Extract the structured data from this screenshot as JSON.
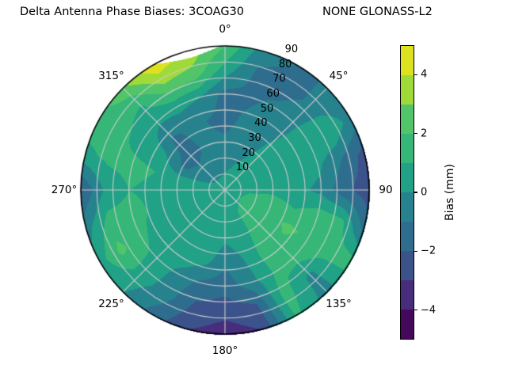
{
  "title": {
    "left": "Delta Antenna Phase Biases: 3COAG30",
    "right": "NONE GLONASS-L2"
  },
  "chart_data": {
    "type": "polar_contour",
    "title": "Delta Antenna Phase Biases: 3COAG30        NONE GLONASS-L2",
    "units": "mm",
    "angular_axis": {
      "zero_at": "top",
      "direction": "clockwise",
      "labels": [
        "0°",
        "45°",
        "90",
        "135°",
        "180°",
        "225°",
        "270°",
        "315°"
      ],
      "angles_deg": [
        0,
        45,
        90,
        135,
        180,
        225,
        270,
        315
      ]
    },
    "radial_axis": {
      "tick_labels": [
        "10",
        "20",
        "30",
        "40",
        "50",
        "60",
        "70",
        "80",
        "90"
      ],
      "tick_values": [
        10,
        20,
        30,
        40,
        50,
        60,
        70,
        80,
        90
      ],
      "max": 90,
      "label_angle_deg": 22.5,
      "grid_rings": [
        10,
        20,
        30,
        40,
        50,
        60,
        70,
        80
      ]
    },
    "colorbar": {
      "label": "Bias (mm)",
      "tick_labels": [
        "4",
        "2",
        "0",
        "−2",
        "−4"
      ],
      "tick_values": [
        4,
        2,
        0,
        -2,
        -4
      ],
      "range": [
        -5,
        5
      ],
      "level_step_mm": 1,
      "band_colors": [
        "#46085c",
        "#472d7b",
        "#3b528b",
        "#2f6d8e",
        "#26838e",
        "#21a186",
        "#36b778",
        "#52c569",
        "#a0da39",
        "#dde220"
      ]
    },
    "grid": {
      "azimuth_deg": [
        0,
        15,
        30,
        45,
        60,
        75,
        90,
        105,
        120,
        135,
        150,
        165,
        180,
        195,
        210,
        225,
        240,
        255,
        270,
        285,
        300,
        315,
        330,
        345
      ],
      "zenith_deg": [
        0,
        15,
        30,
        45,
        60,
        75,
        90
      ],
      "values_mm": [
        [
          0.6,
          0.6,
          0.6,
          0.6,
          0.6,
          0.6,
          0.6,
          0.6,
          0.6,
          0.6,
          0.6,
          0.6,
          0.6,
          0.6,
          0.6,
          0.6,
          0.6,
          0.6,
          0.6,
          0.6,
          0.6,
          0.6,
          0.6,
          0.6
        ],
        [
          -0.2,
          0.0,
          0.2,
          0.3,
          0.5,
          0.7,
          0.9,
          1.1,
          1.2,
          1.1,
          1.0,
          0.9,
          0.8,
          1.0,
          0.9,
          0.6,
          0.4,
          0.3,
          0.3,
          0.2,
          -0.4,
          -0.6,
          -0.5,
          -0.4
        ],
        [
          -0.8,
          -0.5,
          -0.2,
          0.2,
          0.4,
          0.6,
          0.8,
          1.4,
          1.6,
          1.3,
          1.0,
          0.5,
          0.2,
          0.8,
          1.0,
          0.6,
          0.4,
          0.4,
          0.5,
          0.3,
          -1.2,
          -1.4,
          -1.0,
          -0.8
        ],
        [
          -1.4,
          -0.8,
          -0.4,
          0.0,
          0.5,
          0.5,
          0.3,
          1.0,
          2.2,
          1.8,
          1.2,
          0.0,
          -0.8,
          0.3,
          0.8,
          0.5,
          0.5,
          0.8,
          0.8,
          1.0,
          0.3,
          -1.2,
          -0.8,
          -1.0
        ],
        [
          -1.4,
          -1.2,
          -0.8,
          -0.3,
          1.0,
          0.2,
          -0.3,
          1.5,
          1.8,
          1.5,
          1.0,
          -0.5,
          -1.6,
          -1.2,
          -0.3,
          0.8,
          1.2,
          1.4,
          1.0,
          1.3,
          0.6,
          0.2,
          0.3,
          0.0
        ],
        [
          0.5,
          -1.2,
          -1.5,
          -0.8,
          1.0,
          -1.0,
          -1.8,
          1.3,
          1.6,
          -0.3,
          1.5,
          -2.2,
          -2.6,
          -2.2,
          -0.5,
          0.5,
          2.3,
          1.4,
          0.2,
          1.2,
          1.3,
          1.0,
          2.8,
          2.6
        ],
        [
          2.0,
          -0.5,
          -1.0,
          -1.0,
          -0.5,
          -2.4,
          -2.6,
          -1.5,
          1.5,
          -0.5,
          1.2,
          -3.0,
          -3.6,
          -3.0,
          -1.5,
          0.0,
          0.5,
          -0.5,
          -2.2,
          0.8,
          1.5,
          2.8,
          4.8,
          3.8
        ]
      ]
    },
    "no_data_sector": {
      "azimuth_start_deg": 331,
      "azimuth_end_deg": 358,
      "max_depth_deg": 4.3
    },
    "style": {
      "grid_color": "#cccccc",
      "outline_color": "#000000",
      "background": "#ffffff",
      "no_data_color": "#ffffff"
    }
  }
}
